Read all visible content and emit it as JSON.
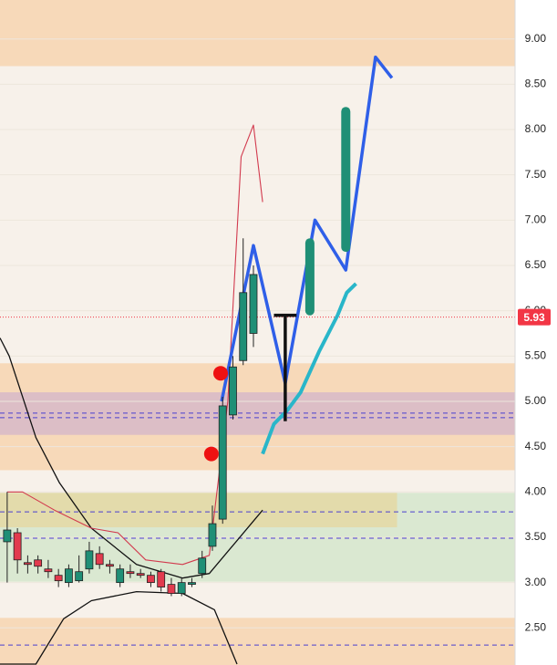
{
  "chart_data": {
    "type": "candlestick",
    "xlim": [
      -0.7,
      49.5
    ],
    "ylim": [
      2.09,
      9.43
    ],
    "yticks": [
      {
        "value": 2.5,
        "label": "2.50"
      },
      {
        "value": 3,
        "label": "3.00"
      },
      {
        "value": 3.5,
        "label": "3.50"
      },
      {
        "value": 4,
        "label": "4.00"
      },
      {
        "value": 4.5,
        "label": "4.50"
      },
      {
        "value": 5,
        "label": "5.00"
      },
      {
        "value": 5.5,
        "label": "5.50"
      },
      {
        "value": 6,
        "label": "6.00"
      },
      {
        "value": 6.5,
        "label": "6.50"
      },
      {
        "value": 7,
        "label": "7.00"
      },
      {
        "value": 7.5,
        "label": "7.50"
      },
      {
        "value": 8,
        "label": "8.00"
      },
      {
        "value": 8.5,
        "label": "8.50"
      },
      {
        "value": 9,
        "label": "9.00"
      }
    ],
    "up_color": "#1f8f76",
    "down_color": "#e23a4e",
    "open": [
      3.45,
      3.55,
      3.22,
      3.25,
      3.15,
      3.08,
      3.0,
      3.02,
      3.15,
      3.32,
      3.2,
      3.0,
      3.12,
      3.1,
      3.08,
      3.12,
      2.98,
      2.88,
      2.98,
      3.1,
      3.4,
      3.7,
      4.85,
      5.45,
      5.75
    ],
    "high": [
      4.0,
      3.6,
      3.3,
      3.3,
      3.25,
      3.15,
      3.2,
      3.3,
      3.45,
      3.4,
      3.25,
      3.2,
      3.2,
      3.15,
      3.12,
      3.15,
      3.05,
      3.05,
      3.05,
      3.35,
      3.85,
      5.05,
      5.5,
      6.8,
      6.5
    ],
    "low": [
      3.0,
      3.1,
      3.1,
      3.1,
      3.05,
      2.95,
      2.95,
      3.0,
      3.1,
      3.15,
      3.1,
      2.95,
      3.05,
      3.05,
      2.95,
      2.9,
      2.85,
      2.85,
      2.95,
      3.05,
      3.35,
      3.65,
      4.8,
      5.4,
      5.6
    ],
    "close": [
      3.58,
      3.25,
      3.2,
      3.18,
      3.12,
      3.02,
      3.15,
      3.12,
      3.35,
      3.2,
      3.18,
      3.15,
      3.1,
      3.08,
      3.0,
      2.95,
      2.88,
      3.0,
      3.0,
      3.27,
      3.65,
      4.95,
      5.38,
      6.2,
      6.4
    ],
    "last_price": 5.93,
    "last_price_color": "#f23645",
    "zones": [
      {
        "from": 8.7,
        "to": 9.43,
        "color": "#f7d5b0"
      },
      {
        "from": 4.24,
        "to": 5.42,
        "color": "#f7d5b0"
      },
      {
        "from": 4.63,
        "to": 5.1,
        "color": "#d7b8c8"
      },
      {
        "from": 3.01,
        "to": 3.99,
        "color": "#d5e6cd"
      },
      {
        "from": 3.61,
        "to": 3.99,
        "color": "#e4d8a4",
        "x_end": 38
      },
      {
        "from": 2.09,
        "to": 2.61,
        "color": "#f7d5b0"
      }
    ],
    "levels": [
      {
        "value": 4.87,
        "color": "#4a3fd0"
      },
      {
        "value": 4.82,
        "color": "#4a3fd0"
      },
      {
        "value": 3.78,
        "color": "#4a3fd0"
      },
      {
        "value": 3.49,
        "color": "#4a3fd0"
      },
      {
        "value": 2.31,
        "color": "#4a3fd0"
      }
    ],
    "lines": [
      {
        "color": "#111111",
        "width": 1.3,
        "x": [
          -0.7,
          0.2,
          2.8,
          5.1,
          8.2,
          12.6,
          17.1,
          19.7,
          24.9
        ],
        "y": [
          5.7,
          5.5,
          4.6,
          4.1,
          3.6,
          3.2,
          3.05,
          3.1,
          3.8
        ]
      },
      {
        "color": "#111111",
        "width": 1.3,
        "x": [
          -0.7,
          2.8,
          5.5,
          8.2,
          12.6,
          17.1,
          20.2,
          22.4
        ],
        "y": [
          2.1,
          2.1,
          2.6,
          2.8,
          2.9,
          2.88,
          2.7,
          2.1
        ]
      },
      {
        "color": "#d23a4e",
        "width": 1.1,
        "x": [
          0,
          1.5,
          4.6,
          8.2,
          10.8,
          13.5,
          17.1,
          19.7,
          21.5,
          22.8,
          24,
          24.9
        ],
        "y": [
          4.0,
          4.0,
          3.8,
          3.6,
          3.55,
          3.25,
          3.2,
          3.3,
          5.0,
          7.7,
          8.05,
          7.2
        ]
      },
      {
        "color": "#29b6c9",
        "width": 4,
        "x": [
          24.9,
          26,
          27.3,
          28.6,
          30.4,
          32.2,
          33.1,
          34
        ],
        "y": [
          4.42,
          4.75,
          4.9,
          5.1,
          5.55,
          5.95,
          6.2,
          6.3
        ]
      },
      {
        "color": "#2f5fe8",
        "width": 3.5,
        "x": [
          20.9,
          24,
          27.1,
          30,
          33,
          35.9,
          37.5
        ],
        "y": [
          5.0,
          6.72,
          5.2,
          7.0,
          6.45,
          8.8,
          8.57
        ]
      },
      {
        "color": "#111111",
        "width": 3.5,
        "x": [
          27.1,
          27.1
        ],
        "y": [
          5.95,
          4.78
        ]
      },
      {
        "color": "#111111",
        "width": 3.5,
        "x": [
          26,
          28.2
        ],
        "y": [
          5.95,
          5.95
        ]
      },
      {
        "color": "#1f8f76",
        "width": 10,
        "x": [
          29.5,
          29.5
        ],
        "y": [
          6.0,
          6.75
        ]
      },
      {
        "color": "#1f8f76",
        "width": 10,
        "x": [
          33,
          33
        ],
        "y": [
          6.7,
          8.2
        ]
      }
    ],
    "dots": {
      "color": "#ee1111",
      "x": [
        19.9,
        20.8
      ],
      "y": [
        4.42,
        5.31
      ]
    }
  }
}
